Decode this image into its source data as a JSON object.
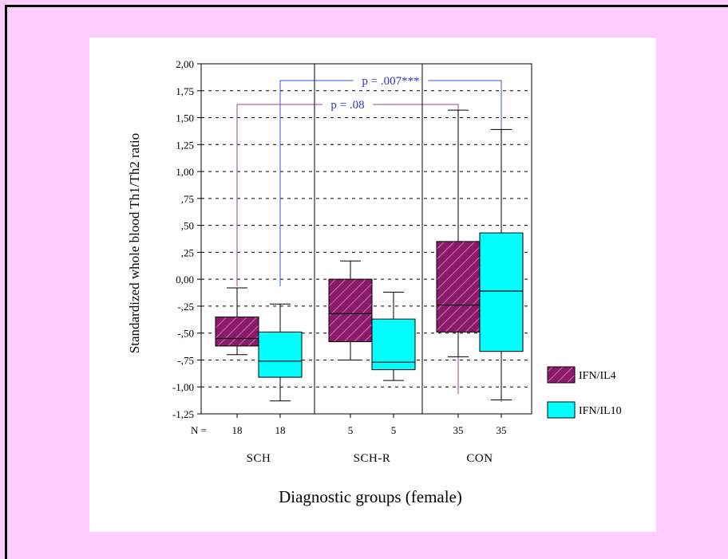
{
  "colors": {
    "background": "#ffccff",
    "panel": "#ffffff",
    "ifn_il4": "#8b1a6b",
    "ifn_il10": "#00ffff",
    "annotation_text": "#3333cc",
    "bracket_ifn_il4": "#a0407f",
    "bracket_ifn_il10": "#3355ee"
  },
  "chart_data": {
    "type": "box",
    "xlabel": "Diagnostic groups (female)",
    "ylabel": "Standardized whole blood Th1/Th2 ratio",
    "ylim": [
      -1.25,
      2.0
    ],
    "yticks": [
      {
        "value": 2.0,
        "label": "2,00"
      },
      {
        "value": 1.75,
        "label": "1,75"
      },
      {
        "value": 1.5,
        "label": "1,50"
      },
      {
        "value": 1.25,
        "label": "1,25"
      },
      {
        "value": 1.0,
        "label": "1,00"
      },
      {
        "value": 0.75,
        "label": ",75"
      },
      {
        "value": 0.5,
        "label": ",50"
      },
      {
        "value": 0.25,
        "label": ",25"
      },
      {
        "value": 0.0,
        "label": "0,00"
      },
      {
        "value": -0.25,
        "label": "-,25"
      },
      {
        "value": -0.5,
        "label": "-,50"
      },
      {
        "value": -0.75,
        "label": "-,75"
      },
      {
        "value": -1.0,
        "label": "-1,00"
      },
      {
        "value": -1.25,
        "label": "-1,25"
      }
    ],
    "grid": "horizontal dashed",
    "n_label": "N =",
    "categories": [
      "SCH",
      "SCH-R",
      "CON"
    ],
    "series": [
      {
        "name": "IFN/IL4",
        "fill": "hatched",
        "boxes": [
          {
            "group": "SCH",
            "n": "18",
            "min": -0.7,
            "q1": -0.62,
            "median": -0.55,
            "q3": -0.35,
            "max": -0.08
          },
          {
            "group": "SCH-R",
            "n": "5",
            "min": -0.75,
            "q1": -0.58,
            "median": -0.32,
            "q3": 0.0,
            "max": 0.17
          },
          {
            "group": "CON",
            "n": "35",
            "min": -0.72,
            "q1": -0.49,
            "median": -0.24,
            "q3": 0.35,
            "max": 1.57
          }
        ]
      },
      {
        "name": "IFN/IL10",
        "fill": "solid",
        "boxes": [
          {
            "group": "SCH",
            "n": "18",
            "min": -1.13,
            "q1": -0.91,
            "median": -0.76,
            "q3": -0.49,
            "max": -0.23
          },
          {
            "group": "SCH-R",
            "n": "5",
            "min": -0.94,
            "q1": -0.84,
            "median": -0.77,
            "q3": -0.37,
            "max": -0.12
          },
          {
            "group": "CON",
            "n": "35",
            "min": -1.12,
            "q1": -0.67,
            "median": -0.11,
            "q3": 0.43,
            "max": 1.39
          }
        ]
      }
    ],
    "annotations": [
      {
        "text": "p = .007***",
        "series": "IFN/IL10",
        "from": "SCH",
        "to": "CON"
      },
      {
        "text": "p = .08",
        "series": "IFN/IL4",
        "from": "SCH",
        "to": "CON"
      }
    ],
    "legend": {
      "placement": "right",
      "items": [
        {
          "label": "IFN/IL4",
          "fill": "hatched"
        },
        {
          "label": "IFN/IL10",
          "fill": "solid"
        }
      ]
    }
  }
}
